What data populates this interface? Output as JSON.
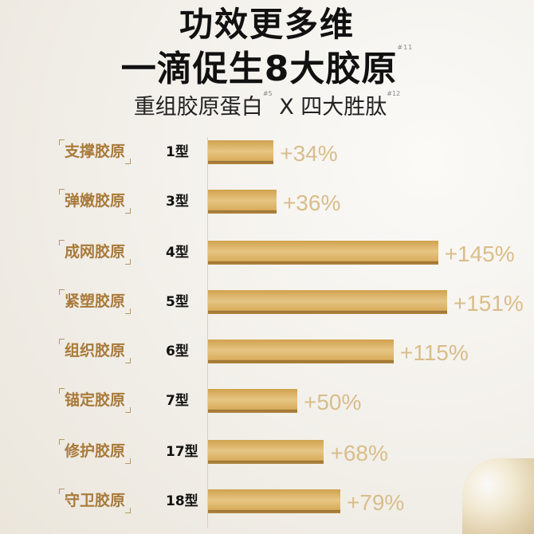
{
  "title_line1": "功效更多维",
  "title_line2": "一滴促生8大胶原",
  "title_line2_note": "#11",
  "subtitle_a": "重组胶原蛋白",
  "subtitle_a_note": "#5",
  "subtitle_x": "X",
  "subtitle_b": "四大胜肽",
  "subtitle_b_note": "#12",
  "chart_data": {
    "type": "bar",
    "orientation": "horizontal",
    "categories": [
      "支撑胶原",
      "弹嫩胶原",
      "成网胶原",
      "紧塑胶原",
      "组织胶原",
      "锚定胶原",
      "修护胶原",
      "守卫胶原"
    ],
    "types": [
      "1型",
      "3型",
      "4型",
      "5型",
      "6型",
      "7型",
      "17型",
      "18型"
    ],
    "values": [
      34,
      36,
      145,
      151,
      115,
      50,
      68,
      79
    ],
    "value_labels": [
      "+34%",
      "+36%",
      "+145%",
      "+151%",
      "+115%",
      "+50%",
      "+68%",
      "+79%"
    ],
    "unit": "%",
    "bar_color": "#d9ad5c",
    "label_color": "#a87a3a"
  }
}
